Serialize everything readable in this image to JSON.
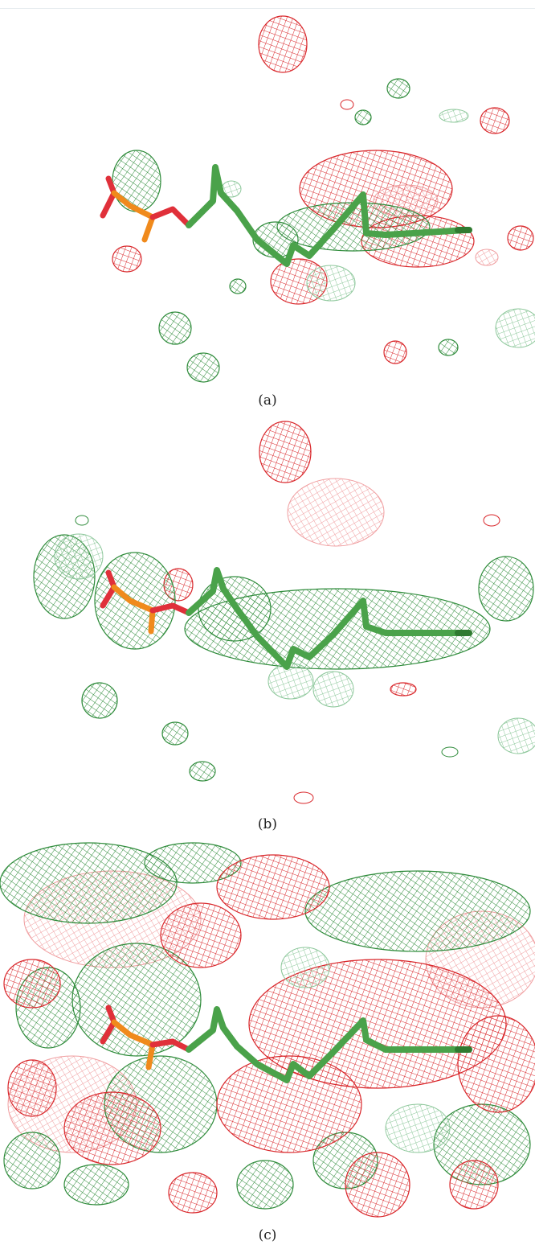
{
  "figure": {
    "panels": [
      {
        "id": "a",
        "caption": "(a)"
      },
      {
        "id": "b",
        "caption": "(b)"
      },
      {
        "id": "c",
        "caption": "(c)"
      }
    ],
    "colors": {
      "mesh_green": "#2e8b3a",
      "mesh_red": "#d9262a",
      "ligand_green": "#4aa24a",
      "ligand_dark": "#2f7a30",
      "phosphate_orange": "#f08a1c",
      "oxygen_red": "#e0303a"
    }
  }
}
